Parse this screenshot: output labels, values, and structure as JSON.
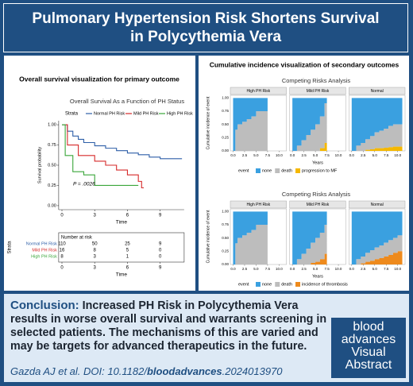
{
  "header": {
    "title": "Pulmonary Hypertension Risk Shortens Survival in Polycythemia Vera"
  },
  "left_panel": {
    "heading": "Overall survival visualization for primary outcome",
    "chart": {
      "type": "line",
      "title": "Overall Survival As a Function of PH Status",
      "legend_title": "Strata",
      "series": [
        {
          "name": "Normal PH Risk",
          "color": "#2e5fa8",
          "x": [
            0,
            0.5,
            1,
            1.5,
            2,
            3,
            4,
            5,
            6,
            7,
            8,
            9,
            11
          ],
          "values": [
            1,
            0.92,
            0.86,
            0.82,
            0.78,
            0.74,
            0.71,
            0.68,
            0.65,
            0.63,
            0.6,
            0.58,
            0.58
          ]
        },
        {
          "name": "Mild PH Risk",
          "color": "#d62a2a",
          "x": [
            0,
            0.5,
            1.5,
            3,
            4,
            5,
            6,
            7,
            7.3,
            7.5
          ],
          "values": [
            1,
            0.75,
            0.62,
            0.55,
            0.5,
            0.44,
            0.38,
            0.3,
            0.22,
            0.22
          ]
        },
        {
          "name": "High PH Risk",
          "color": "#3aa63a",
          "x": [
            0,
            0.3,
            1,
            2,
            3,
            7
          ],
          "values": [
            1,
            0.62,
            0.42,
            0.38,
            0.25,
            0.25
          ]
        }
      ],
      "xlim": [
        -0.3,
        11.2
      ],
      "ylim": [
        -0.05,
        1.05
      ],
      "xticks": [
        0,
        3,
        6,
        9
      ],
      "yticks": [
        {
          "value": 0,
          "label": "0.00"
        },
        {
          "value": 0.25,
          "label": "0.25"
        },
        {
          "value": 0.5,
          "label": "0.50"
        },
        {
          "value": 0.75,
          "label": "0.75"
        },
        {
          "value": 1,
          "label": "1.00"
        }
      ],
      "xlabel": "Time",
      "ylabel": "Survival probability",
      "annotation": "P = .0026"
    },
    "risk_table": {
      "title": "Number at risk",
      "ylabel": "Strata",
      "xlabel": "Time",
      "xticks": [
        0,
        3,
        6,
        9
      ],
      "rows": [
        {
          "name": "Normal PH Risk",
          "color": "#2e5fa8",
          "values": [
            110,
            50,
            25,
            9
          ]
        },
        {
          "name": "Mild PH Risk",
          "color": "#d62a2a",
          "values": [
            16,
            8,
            5,
            0
          ]
        },
        {
          "name": "High PH Risk",
          "color": "#3aa63a",
          "values": [
            8,
            3,
            1,
            0
          ]
        }
      ]
    }
  },
  "right_panel": {
    "heading": "Cumulative incidence visualization of secondary outcomes",
    "charts": [
      {
        "type": "area",
        "title": "Competing Risks Analysis",
        "xlabel": "Years",
        "ylabel": "Cumulative incidence of event",
        "legend_title": "event",
        "legend": [
          {
            "name": "none",
            "color": "#3aa0e0"
          },
          {
            "name": "death",
            "color": "#bdbdbd"
          },
          {
            "name": "progression to MF",
            "color": "#f5b800"
          }
        ],
        "xlim": [
          -0.6,
          11.6
        ],
        "ylim": [
          0,
          1.05
        ],
        "xticks": [
          {
            "value": 0,
            "label": "0.0"
          },
          {
            "value": 2.5,
            "label": "2.5"
          },
          {
            "value": 5,
            "label": "5.0"
          },
          {
            "value": 7.5,
            "label": "7.5"
          },
          {
            "value": 10,
            "label": "10.0"
          }
        ],
        "yticks": [
          {
            "value": 0,
            "label": "0.00"
          },
          {
            "value": 0.25,
            "label": "0.25"
          },
          {
            "value": 0.5,
            "label": "0.50"
          },
          {
            "value": 0.75,
            "label": "0.75"
          },
          {
            "value": 1,
            "label": "1.00"
          }
        ],
        "facets": [
          {
            "label": "High PH Risk",
            "x": [
              0,
              0.5,
              1,
              2,
              3,
              4,
              5,
              7.5
            ],
            "death": [
              0,
              0.4,
              0.5,
              0.55,
              0.6,
              0.65,
              0.75,
              0.75
            ],
            "event": [
              0,
              0,
              0,
              0,
              0,
              0,
              0,
              0
            ]
          },
          {
            "label": "Mild PH Risk",
            "x": [
              0,
              1,
              2,
              3,
              4,
              5,
              6,
              7,
              7.5
            ],
            "death": [
              0,
              0.1,
              0.2,
              0.3,
              0.4,
              0.5,
              0.6,
              0.75,
              0.75
            ],
            "event": [
              0,
              0,
              0,
              0,
              0,
              0,
              0.05,
              0.15,
              0.15
            ]
          },
          {
            "label": "Normal",
            "x": [
              0,
              1,
              2,
              3,
              4,
              5,
              6,
              7,
              8,
              9,
              10,
              11
            ],
            "death": [
              0,
              0.1,
              0.15,
              0.2,
              0.25,
              0.3,
              0.33,
              0.36,
              0.4,
              0.42,
              0.42,
              0.42
            ],
            "event": [
              0,
              0,
              0,
              0.02,
              0.03,
              0.05,
              0.05,
              0.06,
              0.07,
              0.08,
              0.08,
              0.08
            ]
          }
        ]
      },
      {
        "type": "area",
        "title": "Competing Risks Analysis",
        "xlabel": "Years",
        "ylabel": "Cumulative incidence of event",
        "legend_title": "event",
        "legend": [
          {
            "name": "none",
            "color": "#3aa0e0"
          },
          {
            "name": "death",
            "color": "#bdbdbd"
          },
          {
            "name": "incidence of thrombosis",
            "color": "#ee8a1c"
          }
        ],
        "xlim": [
          -0.6,
          11.6
        ],
        "ylim": [
          0,
          1.05
        ],
        "xticks": [
          {
            "value": 0,
            "label": "0.0"
          },
          {
            "value": 2.5,
            "label": "2.5"
          },
          {
            "value": 5,
            "label": "5.0"
          },
          {
            "value": 7.5,
            "label": "7.5"
          },
          {
            "value": 10,
            "label": "10.0"
          }
        ],
        "yticks": [
          {
            "value": 0,
            "label": "0.00"
          },
          {
            "value": 0.25,
            "label": "0.25"
          },
          {
            "value": 0.5,
            "label": "0.50"
          },
          {
            "value": 0.75,
            "label": "0.75"
          },
          {
            "value": 1,
            "label": "1.00"
          }
        ],
        "facets": [
          {
            "label": "High PH Risk",
            "x": [
              0,
              0.5,
              1,
              2,
              3,
              4,
              5,
              7.5
            ],
            "death": [
              0,
              0.4,
              0.5,
              0.55,
              0.6,
              0.65,
              0.75,
              0.75
            ],
            "event": [
              0,
              0,
              0,
              0,
              0,
              0,
              0,
              0
            ]
          },
          {
            "label": "Mild PH Risk",
            "x": [
              0,
              1,
              2,
              3,
              4,
              5,
              6,
              7,
              7.5
            ],
            "death": [
              0,
              0.1,
              0.2,
              0.3,
              0.38,
              0.45,
              0.5,
              0.55,
              0.55
            ],
            "event": [
              0,
              0,
              0,
              0,
              0.03,
              0.05,
              0.1,
              0.2,
              0.2
            ]
          },
          {
            "label": "Normal",
            "x": [
              0,
              1,
              2,
              3,
              4,
              5,
              6,
              7,
              8,
              9,
              10,
              11
            ],
            "death": [
              0,
              0.1,
              0.13,
              0.17,
              0.2,
              0.22,
              0.24,
              0.26,
              0.28,
              0.28,
              0.3,
              0.3
            ],
            "event": [
              0,
              0,
              0.02,
              0.05,
              0.07,
              0.1,
              0.12,
              0.15,
              0.18,
              0.22,
              0.25,
              0.25
            ]
          }
        ]
      }
    ]
  },
  "conclusion": {
    "label": "Conclusion:",
    "text": "Increased PH Risk in Polycythemia Vera results in worse overall survival and warrants screening in selected patients. The mechanisms of this are varied and may be targets for advanced therapeutics in the future."
  },
  "citation": {
    "prefix": "Gazda AJ et al. DOI: 10.1182/",
    "journal": "bloodadvances",
    "suffix": ".2024013970"
  },
  "logo": {
    "line1": "blood",
    "line2": "advances",
    "line3": "Visual",
    "line4": "Abstract"
  }
}
